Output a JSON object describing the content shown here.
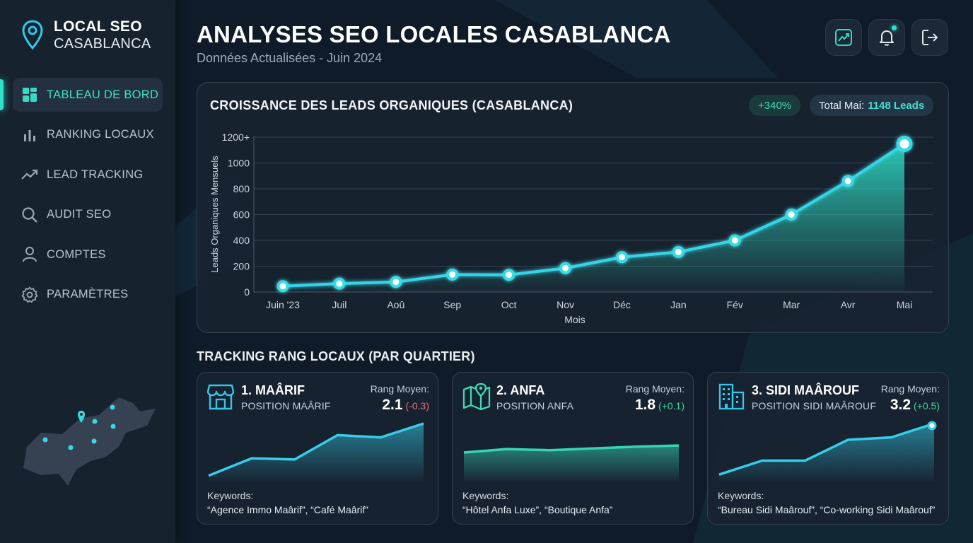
{
  "brand": {
    "line1": "LOCAL SEO",
    "line2": "CASABLANCA",
    "icon": "map-pin-icon"
  },
  "sidebar": {
    "items": [
      {
        "label": "TABLEAU DE BORD",
        "icon": "dashboard-icon",
        "active": true
      },
      {
        "label": "RANKING LOCAUX",
        "icon": "bar-chart-icon",
        "active": false
      },
      {
        "label": "LEAD TRACKING",
        "icon": "trend-icon",
        "active": false
      },
      {
        "label": "AUDIT SEO",
        "icon": "search-icon",
        "active": false
      },
      {
        "label": "COMPTES",
        "icon": "user-icon",
        "active": false
      },
      {
        "label": "PARAMÈTRES",
        "icon": "gear-icon",
        "active": false
      }
    ]
  },
  "header": {
    "title": "ANALYSES SEO LOCALES CASABLANCA",
    "subtitle": "Données Actualisées - Juin 2024",
    "actions": [
      "analytics-icon",
      "bell-icon",
      "logout-icon"
    ]
  },
  "colors": {
    "accent": "#2fe0c8",
    "background": "#0f1b28",
    "card": "#182330",
    "negative": "#e3727d",
    "positive": "#3fd29a"
  },
  "chart_data": {
    "type": "area",
    "title": "CROISSANCE DES LEADS ORGANIQUES (CASABLANCA)",
    "xlabel": "Mois",
    "ylabel": "Leads Organiques Mensuels",
    "categories": [
      "Juin '23",
      "Juil",
      "Aoû",
      "Sep",
      "Oct",
      "Nov",
      "Déc",
      "Jan",
      "Fév",
      "Mar",
      "Avr",
      "Mai"
    ],
    "series": [
      {
        "values": [
          45,
          65,
          78,
          135,
          133,
          185,
          270,
          310,
          400,
          600,
          860,
          1148
        ]
      }
    ],
    "yticks": [
      "0",
      "200",
      "400",
      "600",
      "800",
      "1000",
      "1200+"
    ],
    "ylim": [
      0,
      1200
    ],
    "grid": true,
    "badges": {
      "growth": "+340%",
      "total_label": "Total Mai:",
      "total_value": "1148 Leads"
    }
  },
  "ranking": {
    "section_title": "TRACKING RANG LOCAUX (PAR QUARTIER)",
    "rank_label": "Rang Moyen:",
    "keywords_label": "Keywords:",
    "cards": [
      {
        "name": "1. MAÂRIF",
        "subtitle": "POSITION MAÂRIF",
        "icon": "storefront-icon",
        "rank": "2.1",
        "delta": "(-0.3)",
        "delta_type": "neg",
        "keywords": "“Agence Immo Maârif”, “Café Maârif”",
        "trend": [
          0.1,
          0.4,
          0.38,
          0.8,
          0.76,
          1.0
        ]
      },
      {
        "name": "2. ANFA",
        "subtitle": "POSITION ANFA",
        "icon": "map-icon",
        "rank": "1.8",
        "delta": "(+0.1)",
        "delta_type": "pos",
        "keywords": "“Hôtel Anfa Luxe”, “Boutique Anfa”",
        "trend": [
          0.5,
          0.56,
          0.54,
          0.57,
          0.6,
          0.62
        ]
      },
      {
        "name": "3. SIDI MAÂROUF",
        "subtitle": "POSITION SIDI MAÂROUF",
        "icon": "buildings-icon",
        "rank": "3.2",
        "delta": "(+0.5)",
        "delta_type": "pos",
        "keywords": "“Bureau Sidi Maârouf”, “Co-working Sidi Maârouf”",
        "trend": [
          0.12,
          0.36,
          0.36,
          0.72,
          0.76,
          1.0
        ]
      }
    ]
  }
}
